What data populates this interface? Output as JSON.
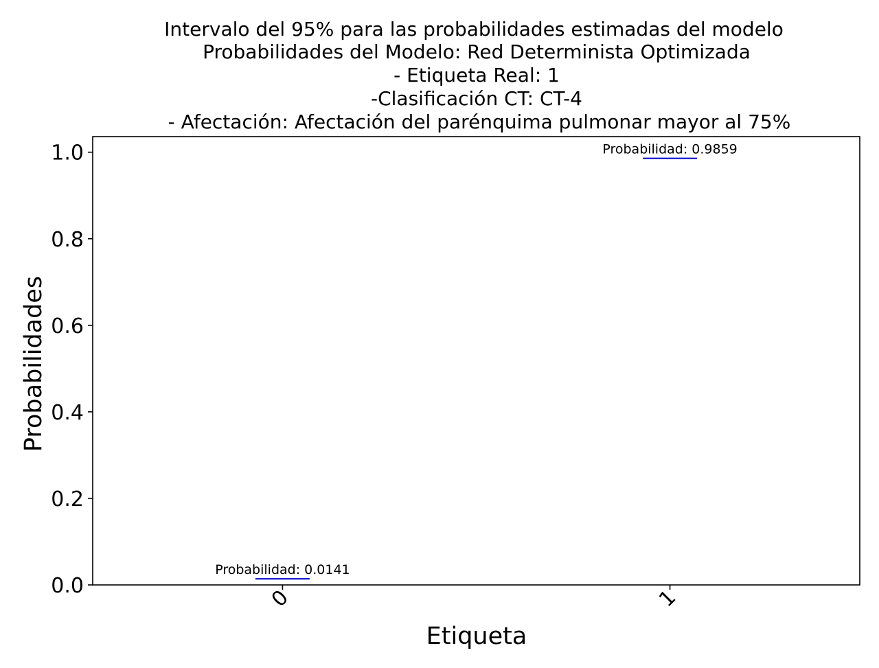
{
  "chart_data": {
    "type": "scatter",
    "title_lines": [
      "Intervalo del 95% para las probabilidades estimadas del modelo",
      "Probabilidades del Modelo: Red Determinista Optimizada",
      "- Etiqueta Real: 1",
      "-Clasificación CT: CT-4",
      "- Afectación: Afectación del parénquima pulmonar mayor al 75%"
    ],
    "xlabel": "Etiqueta",
    "ylabel": "Probabilidades",
    "categories": [
      "0",
      "1"
    ],
    "x_tick_rotation_deg": 45,
    "ylim": [
      0.0,
      1.036
    ],
    "xlim": [
      -0.49,
      1.49
    ],
    "yticks": [
      "0.0",
      "0.2",
      "0.4",
      "0.6",
      "0.8",
      "1.0"
    ],
    "ytick_values": [
      0.0,
      0.2,
      0.4,
      0.6,
      0.8,
      1.0
    ],
    "grid": false,
    "series": [
      {
        "values": [
          0.0141,
          0.9859
        ],
        "interval_half_width": 0.07,
        "color": "#0000cc"
      }
    ],
    "annotations": [
      {
        "category": "0",
        "value": 0.0141,
        "text": "Probabilidad: 0.0141"
      },
      {
        "category": "1",
        "value": 0.9859,
        "text": "Probabilidad: 0.9859"
      }
    ]
  }
}
